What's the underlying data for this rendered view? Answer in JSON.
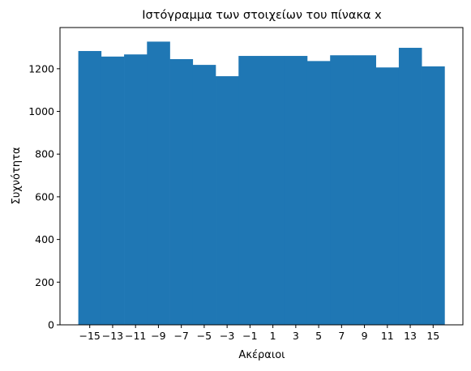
{
  "chart_data": {
    "type": "bar",
    "title": "Ιστόγραμμα των στοιχείων του πίνακα x",
    "xlabel": "Ακέραιοι",
    "ylabel": "Συχνότητα",
    "bin_edges": [
      -16,
      -14,
      -12,
      -10,
      -8,
      -6,
      -4,
      -2,
      0,
      2,
      4,
      6,
      8,
      10,
      12,
      14,
      16
    ],
    "values": [
      1283,
      1257,
      1267,
      1327,
      1245,
      1218,
      1165,
      1260,
      1260,
      1260,
      1236,
      1263,
      1263,
      1206,
      1298,
      1211
    ],
    "xticks": [
      -15,
      -13,
      -11,
      -9,
      -7,
      -5,
      -3,
      -1,
      1,
      3,
      5,
      7,
      9,
      11,
      13,
      15
    ],
    "xtick_labels": [
      "−15",
      "−13",
      "−11",
      "−9",
      "−7",
      "−5",
      "−3",
      "−1",
      "1",
      "3",
      "5",
      "7",
      "9",
      "11",
      "13",
      "15"
    ],
    "yticks": [
      0,
      200,
      400,
      600,
      800,
      1000,
      1200
    ],
    "ytick_labels": [
      "0",
      "200",
      "400",
      "600",
      "800",
      "1000",
      "1200"
    ],
    "xlim": [
      -17.6,
      17.6
    ],
    "ylim": [
      0,
      1393
    ],
    "bar_color": "#1f77b4",
    "grid": false,
    "legend": "none"
  }
}
